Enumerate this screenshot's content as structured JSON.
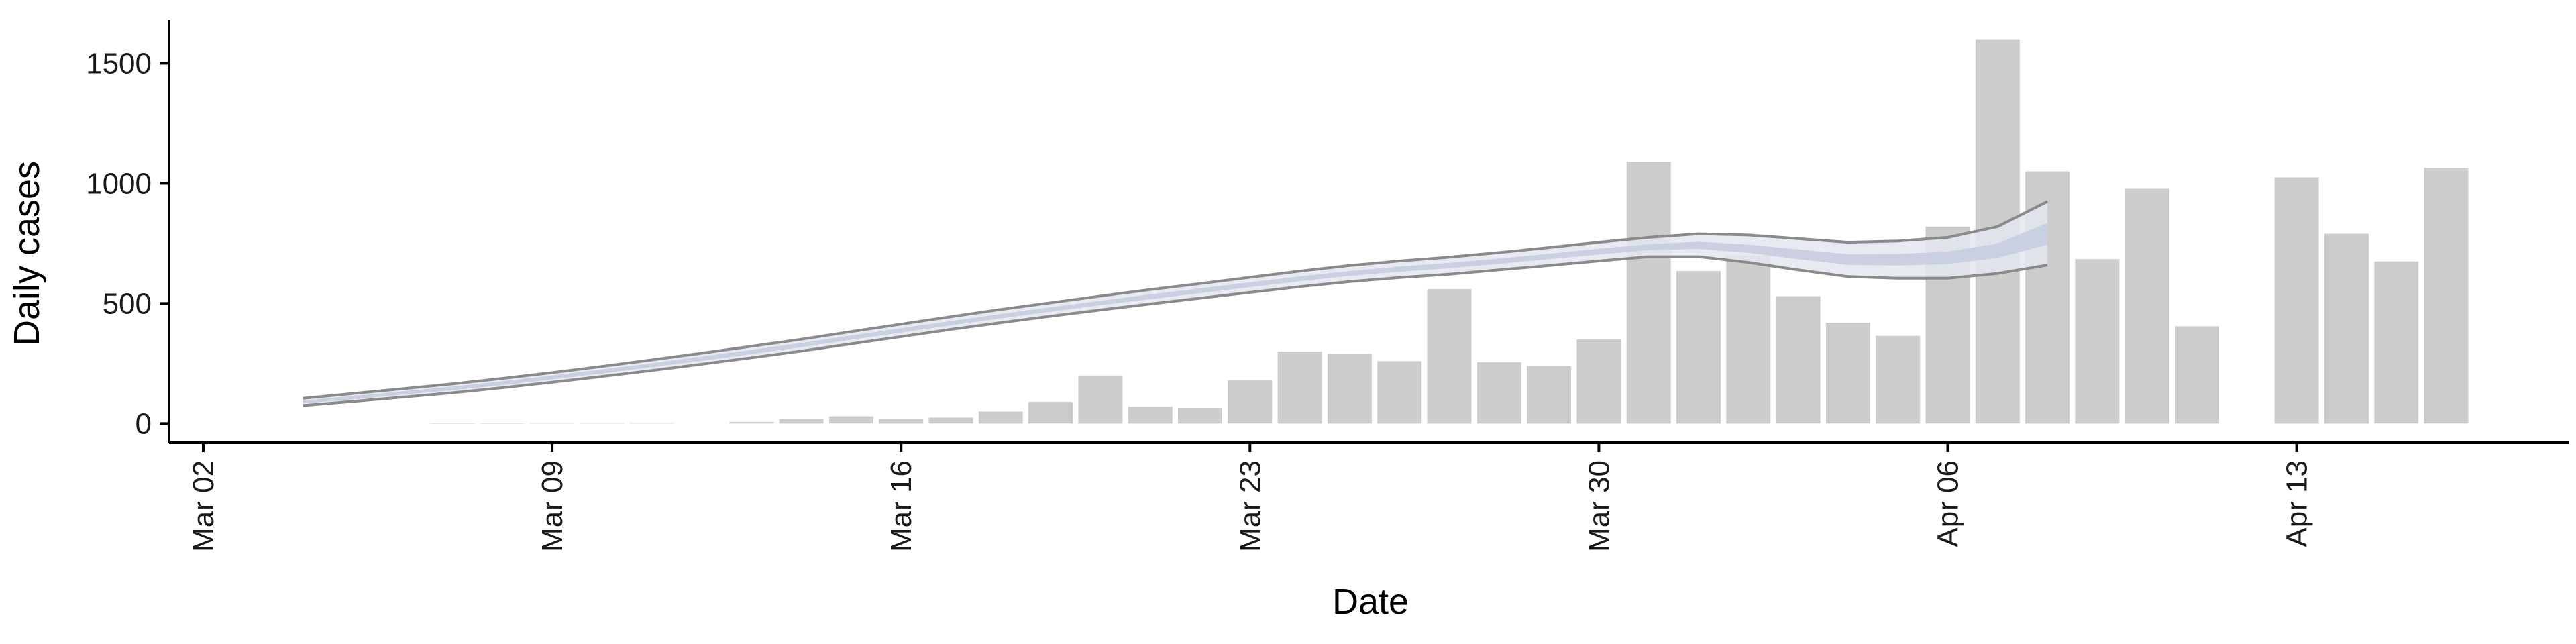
{
  "chart_data": {
    "type": "bar",
    "xlabel": "Date",
    "ylabel": "Daily cases",
    "ylim": [
      -80,
      1680
    ],
    "grid": false,
    "x_ticks": [
      {
        "date": "2020-03-02",
        "label": "Mar 02"
      },
      {
        "date": "2020-03-09",
        "label": "Mar 09"
      },
      {
        "date": "2020-03-16",
        "label": "Mar 16"
      },
      {
        "date": "2020-03-23",
        "label": "Mar 23"
      },
      {
        "date": "2020-03-30",
        "label": "Mar 30"
      },
      {
        "date": "2020-04-06",
        "label": "Apr 06"
      },
      {
        "date": "2020-04-13",
        "label": "Apr 13"
      }
    ],
    "y_ticks": [
      0,
      500,
      1000,
      1500
    ],
    "bars": [
      {
        "date": "2020-03-07",
        "value": 1
      },
      {
        "date": "2020-03-08",
        "value": 1
      },
      {
        "date": "2020-03-09",
        "value": 2
      },
      {
        "date": "2020-03-10",
        "value": 2
      },
      {
        "date": "2020-03-11",
        "value": 2
      },
      {
        "date": "2020-03-13",
        "value": 7
      },
      {
        "date": "2020-03-14",
        "value": 20
      },
      {
        "date": "2020-03-15",
        "value": 30
      },
      {
        "date": "2020-03-16",
        "value": 20
      },
      {
        "date": "2020-03-17",
        "value": 25
      },
      {
        "date": "2020-03-18",
        "value": 50
      },
      {
        "date": "2020-03-19",
        "value": 90
      },
      {
        "date": "2020-03-20",
        "value": 200
      },
      {
        "date": "2020-03-21",
        "value": 70
      },
      {
        "date": "2020-03-22",
        "value": 65
      },
      {
        "date": "2020-03-23",
        "value": 180
      },
      {
        "date": "2020-03-24",
        "value": 300
      },
      {
        "date": "2020-03-25",
        "value": 290
      },
      {
        "date": "2020-03-26",
        "value": 260
      },
      {
        "date": "2020-03-27",
        "value": 560
      },
      {
        "date": "2020-03-28",
        "value": 255
      },
      {
        "date": "2020-03-29",
        "value": 240
      },
      {
        "date": "2020-03-30",
        "value": 350
      },
      {
        "date": "2020-03-31",
        "value": 1090
      },
      {
        "date": "2020-04-01",
        "value": 635
      },
      {
        "date": "2020-04-02",
        "value": 700
      },
      {
        "date": "2020-04-03",
        "value": 530
      },
      {
        "date": "2020-04-04",
        "value": 420
      },
      {
        "date": "2020-04-05",
        "value": 365
      },
      {
        "date": "2020-04-06",
        "value": 820
      },
      {
        "date": "2020-04-07",
        "value": 1600
      },
      {
        "date": "2020-04-08",
        "value": 1050
      },
      {
        "date": "2020-04-09",
        "value": 685
      },
      {
        "date": "2020-04-10",
        "value": 980
      },
      {
        "date": "2020-04-11",
        "value": 405
      },
      {
        "date": "2020-04-13",
        "value": 1025
      },
      {
        "date": "2020-04-14",
        "value": 790
      },
      {
        "date": "2020-04-15",
        "value": 675
      },
      {
        "date": "2020-04-16",
        "value": 1065
      }
    ],
    "trend": {
      "points": [
        {
          "date": "2020-03-04",
          "mid": 90,
          "upper": 105,
          "lower": 75,
          "inner_upper": 96,
          "inner_lower": 84
        },
        {
          "date": "2020-03-05",
          "mid": 108,
          "upper": 125,
          "lower": 92,
          "inner_upper": 115,
          "inner_lower": 101
        },
        {
          "date": "2020-03-06",
          "mid": 127,
          "upper": 145,
          "lower": 110,
          "inner_upper": 134,
          "inner_lower": 120
        },
        {
          "date": "2020-03-07",
          "mid": 146,
          "upper": 165,
          "lower": 128,
          "inner_upper": 154,
          "inner_lower": 139
        },
        {
          "date": "2020-03-08",
          "mid": 168,
          "upper": 188,
          "lower": 149,
          "inner_upper": 176,
          "inner_lower": 160
        },
        {
          "date": "2020-03-09",
          "mid": 192,
          "upper": 212,
          "lower": 172,
          "inner_upper": 200,
          "inner_lower": 184
        },
        {
          "date": "2020-03-10",
          "mid": 217,
          "upper": 238,
          "lower": 196,
          "inner_upper": 225,
          "inner_lower": 209
        },
        {
          "date": "2020-03-11",
          "mid": 243,
          "upper": 265,
          "lower": 221,
          "inner_upper": 251,
          "inner_lower": 235
        },
        {
          "date": "2020-03-12",
          "mid": 270,
          "upper": 293,
          "lower": 247,
          "inner_upper": 279,
          "inner_lower": 261
        },
        {
          "date": "2020-03-13",
          "mid": 298,
          "upper": 322,
          "lower": 274,
          "inner_upper": 307,
          "inner_lower": 289
        },
        {
          "date": "2020-03-14",
          "mid": 327,
          "upper": 351,
          "lower": 302,
          "inner_upper": 336,
          "inner_lower": 318
        },
        {
          "date": "2020-03-15",
          "mid": 358,
          "upper": 383,
          "lower": 332,
          "inner_upper": 367,
          "inner_lower": 349
        },
        {
          "date": "2020-03-16",
          "mid": 388,
          "upper": 414,
          "lower": 362,
          "inner_upper": 397,
          "inner_lower": 379
        },
        {
          "date": "2020-03-17",
          "mid": 418,
          "upper": 445,
          "lower": 392,
          "inner_upper": 427,
          "inner_lower": 409
        },
        {
          "date": "2020-03-18",
          "mid": 447,
          "upper": 475,
          "lower": 420,
          "inner_upper": 456,
          "inner_lower": 438
        },
        {
          "date": "2020-03-19",
          "mid": 475,
          "upper": 503,
          "lower": 447,
          "inner_upper": 484,
          "inner_lower": 466
        },
        {
          "date": "2020-03-20",
          "mid": 502,
          "upper": 531,
          "lower": 473,
          "inner_upper": 511,
          "inner_lower": 493
        },
        {
          "date": "2020-03-21",
          "mid": 528,
          "upper": 558,
          "lower": 498,
          "inner_upper": 538,
          "inner_lower": 518
        },
        {
          "date": "2020-03-22",
          "mid": 553,
          "upper": 583,
          "lower": 522,
          "inner_upper": 563,
          "inner_lower": 543
        },
        {
          "date": "2020-03-23",
          "mid": 578,
          "upper": 609,
          "lower": 546,
          "inner_upper": 588,
          "inner_lower": 568
        },
        {
          "date": "2020-03-24",
          "mid": 603,
          "upper": 635,
          "lower": 570,
          "inner_upper": 613,
          "inner_lower": 593
        },
        {
          "date": "2020-03-25",
          "mid": 625,
          "upper": 658,
          "lower": 591,
          "inner_upper": 635,
          "inner_lower": 615
        },
        {
          "date": "2020-03-26",
          "mid": 643,
          "upper": 677,
          "lower": 608,
          "inner_upper": 654,
          "inner_lower": 632
        },
        {
          "date": "2020-03-27",
          "mid": 658,
          "upper": 693,
          "lower": 622,
          "inner_upper": 669,
          "inner_lower": 647
        },
        {
          "date": "2020-03-28",
          "mid": 676,
          "upper": 712,
          "lower": 640,
          "inner_upper": 687,
          "inner_lower": 665
        },
        {
          "date": "2020-03-29",
          "mid": 696,
          "upper": 733,
          "lower": 658,
          "inner_upper": 707,
          "inner_lower": 685
        },
        {
          "date": "2020-03-30",
          "mid": 716,
          "upper": 755,
          "lower": 677,
          "inner_upper": 728,
          "inner_lower": 704
        },
        {
          "date": "2020-03-31",
          "mid": 735,
          "upper": 775,
          "lower": 695,
          "inner_upper": 747,
          "inner_lower": 723
        },
        {
          "date": "2020-04-01",
          "mid": 742,
          "upper": 790,
          "lower": 695,
          "inner_upper": 757,
          "inner_lower": 727
        },
        {
          "date": "2020-04-02",
          "mid": 728,
          "upper": 785,
          "lower": 671,
          "inner_upper": 745,
          "inner_lower": 711
        },
        {
          "date": "2020-04-03",
          "mid": 705,
          "upper": 770,
          "lower": 640,
          "inner_upper": 725,
          "inner_lower": 685
        },
        {
          "date": "2020-04-04",
          "mid": 683,
          "upper": 755,
          "lower": 612,
          "inner_upper": 705,
          "inner_lower": 661
        },
        {
          "date": "2020-04-05",
          "mid": 682,
          "upper": 760,
          "lower": 605,
          "inner_upper": 706,
          "inner_lower": 658
        },
        {
          "date": "2020-04-06",
          "mid": 690,
          "upper": 775,
          "lower": 605,
          "inner_upper": 716,
          "inner_lower": 664
        },
        {
          "date": "2020-04-07",
          "mid": 720,
          "upper": 820,
          "lower": 625,
          "inner_upper": 750,
          "inner_lower": 690
        },
        {
          "date": "2020-04-08",
          "mid": 790,
          "upper": 925,
          "lower": 660,
          "inner_upper": 835,
          "inner_lower": 745
        }
      ]
    },
    "colors": {
      "bar": "#cccccc",
      "band_outer": "#e3e6ee",
      "band_inner": "#c6cde0",
      "band_edge": "#8a8a8a",
      "axis": "#000000"
    }
  }
}
